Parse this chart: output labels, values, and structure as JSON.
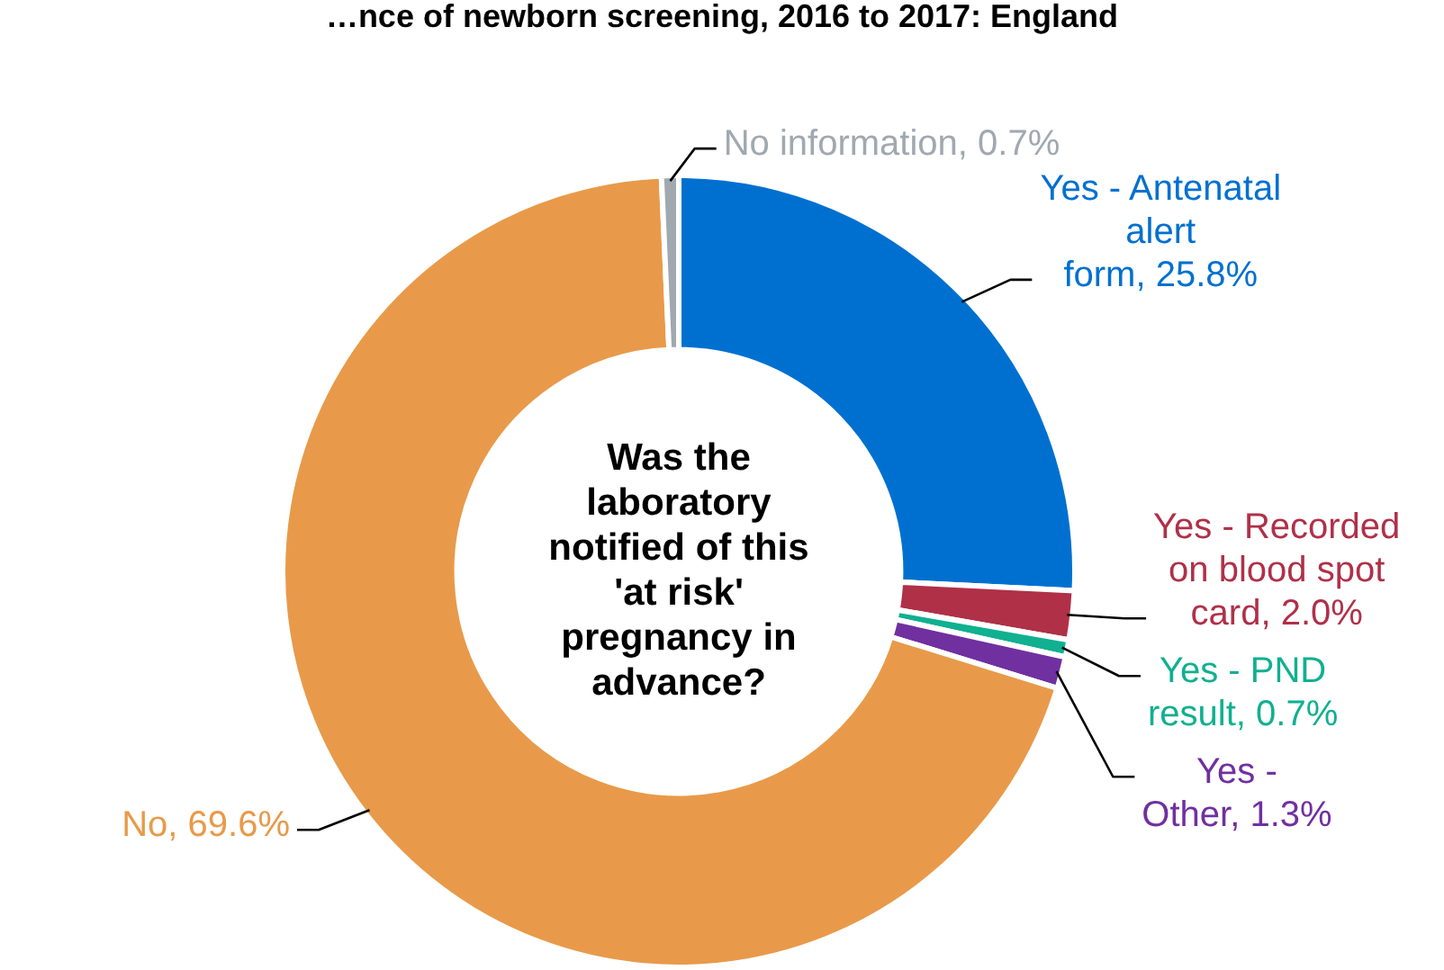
{
  "chart_data": {
    "type": "donut",
    "title": "…nce of newborn screening, 2016 to 2017: England",
    "categories": [
      "Yes - Antenatal alert form",
      "Yes - Recorded on blood spot card",
      "Yes - PND result",
      "Yes - Other",
      "No",
      "No information"
    ],
    "values": [
      25.8,
      2.0,
      0.7,
      1.3,
      69.6,
      0.7
    ],
    "value_labels": [
      "25.8%",
      "2.0%",
      "0.7%",
      "1.3%",
      "69.6%",
      "0.7%"
    ],
    "colors": [
      "#0070d0",
      "#b03048",
      "#10b090",
      "#7030a0",
      "#e89a4a",
      "#a0a8b0"
    ],
    "annotations": [
      "Was the laboratory notified of this 'at risk' pregnancy in advance?"
    ],
    "legend": false
  }
}
